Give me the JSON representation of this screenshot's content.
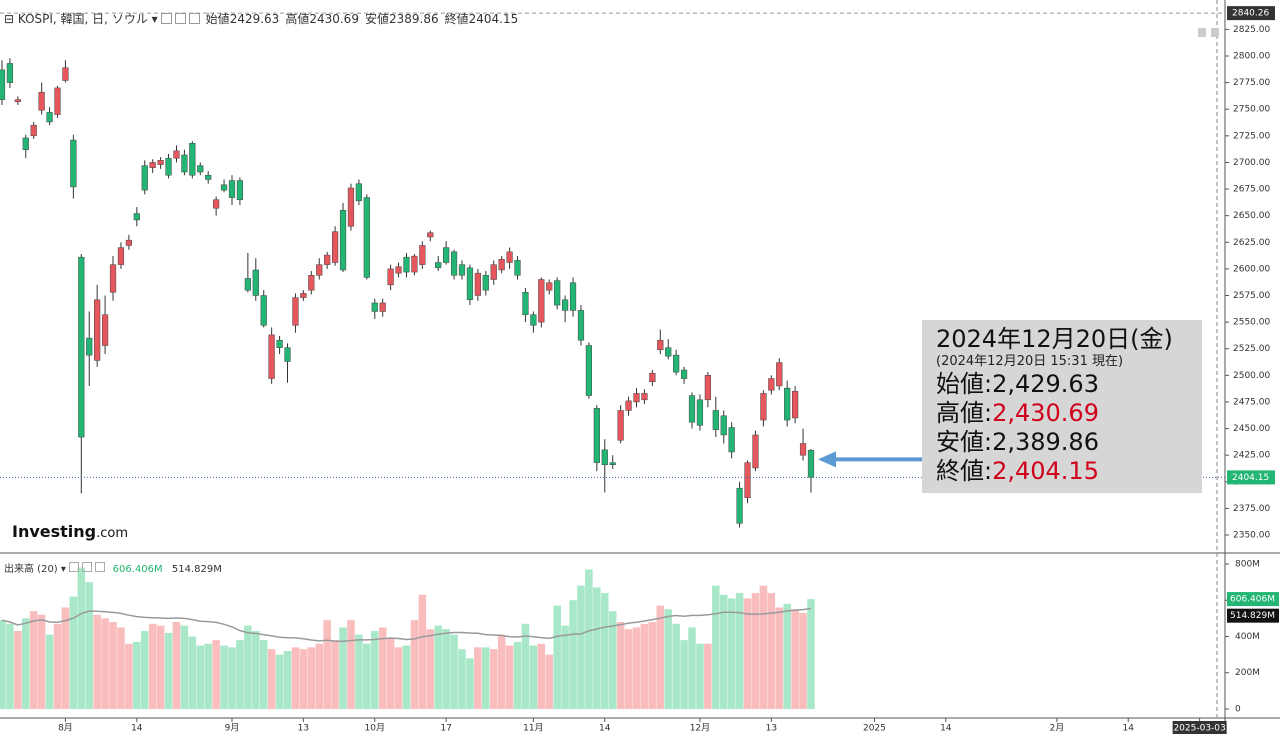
{
  "header": {
    "symbol": "KOSPI, 韓国, 日, ソウル",
    "ohlc": [
      {
        "name": "始値",
        "value": 2429.63
      },
      {
        "name": "高値",
        "value": 2430.69
      },
      {
        "name": "安値",
        "value": 2389.86
      },
      {
        "name": "終値",
        "value": 2404.15
      }
    ]
  },
  "logo": [
    "Investing",
    ".com"
  ],
  "callout": {
    "title": "2024年12月20日(金)",
    "subtitle": "(2024年12月20日 15:31 現在)",
    "rows": [
      {
        "name": "始値:",
        "value": {
          "value": 2429.63,
          "label": "2,429.63"
        },
        "color": "#111111"
      },
      {
        "name": "高値:",
        "value": {
          "value": 2430.69,
          "label": "2,430.69"
        },
        "color": "#d0021b"
      },
      {
        "name": "安値:",
        "value": {
          "value": 2389.86,
          "label": "2,389.86"
        },
        "color": "#111111"
      },
      {
        "name": "終値:",
        "value": {
          "value": 2404.15,
          "label": "2,404.15"
        },
        "color": "#d0021b"
      }
    ]
  },
  "chart_data": {
    "type": "candlestick",
    "up_color": "#e5575c",
    "down_color": "#22b573",
    "wick_color": "#333333",
    "xlim": [
      -0.25,
      154.2
    ],
    "xticks": [
      {
        "value": 8,
        "label": "8月"
      },
      {
        "value": 17,
        "label": "14"
      },
      {
        "value": 29,
        "label": "9月"
      },
      {
        "value": 38,
        "label": "13"
      },
      {
        "value": 47,
        "label": "10月"
      },
      {
        "value": 56,
        "label": "17"
      },
      {
        "value": 67,
        "label": "11月"
      },
      {
        "value": 76,
        "label": "14"
      },
      {
        "value": 88,
        "label": "12月"
      },
      {
        "value": 97,
        "label": "13"
      },
      {
        "value": 110,
        "label": "2025"
      },
      {
        "value": 119,
        "label": "14"
      },
      {
        "value": 133,
        "label": "2月"
      },
      {
        "value": 142,
        "label": "14"
      },
      {
        "value": 151,
        "label": "2025-03-03"
      }
    ],
    "ylim": [
      2333.1,
      2852.6
    ],
    "yticks": [
      {
        "value": 2350,
        "label": "2350.00"
      },
      {
        "value": 2375,
        "label": "2375.00"
      },
      {
        "value": 2400,
        "label": "2400.00"
      },
      {
        "value": 2425,
        "label": "2425.00"
      },
      {
        "value": 2450,
        "label": "2450.00"
      },
      {
        "value": 2475,
        "label": "2475.00"
      },
      {
        "value": 2500,
        "label": "2500.00"
      },
      {
        "value": 2525,
        "label": "2525.00"
      },
      {
        "value": 2550,
        "label": "2550.00"
      },
      {
        "value": 2575,
        "label": "2575.00"
      },
      {
        "value": 2600,
        "label": "2600.00"
      },
      {
        "value": 2625,
        "label": "2625.00"
      },
      {
        "value": 2650,
        "label": "2650.00"
      },
      {
        "value": 2675,
        "label": "2675.00"
      },
      {
        "value": 2700,
        "label": "2700.00"
      },
      {
        "value": 2725,
        "label": "2725.00"
      },
      {
        "value": 2750,
        "label": "2750.00"
      },
      {
        "value": 2775,
        "label": "2775.00"
      },
      {
        "value": 2800,
        "label": "2800.00"
      },
      {
        "value": 2825,
        "label": "2825.00"
      }
    ],
    "top_value": 2840.26,
    "open": [
      2787,
      2793,
      2757,
      2723,
      2725,
      2749,
      2747,
      2745,
      2777,
      2721,
      2611,
      2535,
      2514,
      2528,
      2578,
      2604,
      2622,
      2652,
      2697,
      2695,
      2698,
      2704,
      2704,
      2707,
      2718,
      2697,
      2688,
      2657,
      2679,
      2683,
      2683,
      2591,
      2599,
      2575,
      2497,
      2533,
      2526,
      2547,
      2573,
      2580,
      2594,
      2604,
      2606,
      2655,
      2640,
      2680,
      2667,
      2568,
      2560,
      2585,
      2596,
      2611,
      2597,
      2604,
      2630,
      2606,
      2620,
      2616,
      2604,
      2601,
      2575,
      2594,
      2590,
      2599,
      2606,
      2608,
      2578,
      2557,
      2550,
      2580,
      2589,
      2571,
      2587,
      2561,
      2528,
      2469,
      2430,
      2418,
      2439,
      2467,
      2475,
      2477,
      2494,
      2524,
      2526,
      2519,
      2505,
      2481,
      2477,
      2477,
      2467,
      2462,
      2451,
      2394,
      2385,
      2413,
      2458,
      2486,
      2490,
      2488,
      2460,
      2425,
      2429.63
    ],
    "high": [
      2796,
      2798,
      2762,
      2726,
      2738,
      2775,
      2752,
      2772,
      2796,
      2726,
      2614,
      2560,
      2585,
      2575,
      2612,
      2625,
      2632,
      2658,
      2702,
      2703,
      2705,
      2708,
      2716,
      2712,
      2720,
      2700,
      2692,
      2668,
      2684,
      2688,
      2686,
      2615,
      2610,
      2580,
      2545,
      2537,
      2530,
      2577,
      2580,
      2598,
      2610,
      2616,
      2640,
      2662,
      2680,
      2684,
      2670,
      2572,
      2572,
      2604,
      2606,
      2615,
      2614,
      2626,
      2636,
      2612,
      2626,
      2618,
      2608,
      2604,
      2600,
      2598,
      2608,
      2612,
      2620,
      2612,
      2582,
      2560,
      2592,
      2590,
      2592,
      2575,
      2592,
      2566,
      2531,
      2472,
      2440,
      2425,
      2472,
      2480,
      2488,
      2487,
      2505,
      2543,
      2534,
      2524,
      2508,
      2484,
      2482,
      2503,
      2480,
      2467,
      2456,
      2400,
      2420,
      2448,
      2486,
      2500,
      2516,
      2495,
      2490,
      2450,
      2430.69
    ],
    "low": [
      2754,
      2770,
      2754,
      2704,
      2722,
      2745,
      2735,
      2742,
      2775,
      2666,
      2389,
      2490,
      2508,
      2520,
      2570,
      2600,
      2618,
      2640,
      2670,
      2690,
      2694,
      2685,
      2700,
      2688,
      2685,
      2688,
      2680,
      2650,
      2672,
      2660,
      2660,
      2578,
      2570,
      2545,
      2492,
      2520,
      2493,
      2540,
      2570,
      2576,
      2590,
      2600,
      2603,
      2597,
      2636,
      2660,
      2590,
      2553,
      2555,
      2580,
      2592,
      2592,
      2594,
      2600,
      2626,
      2598,
      2604,
      2590,
      2590,
      2566,
      2570,
      2575,
      2585,
      2596,
      2600,
      2590,
      2550,
      2540,
      2545,
      2576,
      2562,
      2550,
      2555,
      2528,
      2478,
      2410,
      2390,
      2412,
      2436,
      2462,
      2470,
      2473,
      2490,
      2520,
      2515,
      2500,
      2492,
      2450,
      2448,
      2470,
      2442,
      2436,
      2422,
      2357,
      2380,
      2410,
      2452,
      2482,
      2486,
      2452,
      2455,
      2420,
      2389.86
    ],
    "close": [
      2759,
      2775,
      2759,
      2712,
      2735,
      2766,
      2738,
      2770,
      2789,
      2677,
      2442,
      2519,
      2571,
      2557,
      2604,
      2620,
      2627,
      2646,
      2674,
      2700,
      2702,
      2688,
      2711,
      2691,
      2688,
      2691,
      2684,
      2665,
      2674,
      2667,
      2665,
      2580,
      2575,
      2547,
      2538,
      2526,
      2513,
      2573,
      2577,
      2594,
      2604,
      2613,
      2635,
      2599,
      2676,
      2664,
      2592,
      2560,
      2568,
      2600,
      2602,
      2597,
      2612,
      2622,
      2634,
      2601,
      2606,
      2594,
      2594,
      2571,
      2596,
      2580,
      2604,
      2609,
      2616,
      2594,
      2557,
      2547,
      2590,
      2587,
      2566,
      2561,
      2561,
      2533,
      2481,
      2418,
      2416,
      2416,
      2467,
      2476,
      2483,
      2483,
      2502,
      2533,
      2518,
      2503,
      2497,
      2456,
      2453,
      2500,
      2449,
      2444,
      2428,
      2361,
      2418,
      2444,
      2483,
      2497,
      2512,
      2458,
      2485,
      2436,
      2404.15
    ],
    "volume": {
      "name": "出来高 (20)",
      "up_color": "#f9bdbd",
      "down_color": "#a8e8c9",
      "ma_color": "#9a9a9a",
      "ylim": [
        -49.7,
        844
      ],
      "yticks": [
        0,
        {
          "value": 200,
          "label": "200M"
        },
        {
          "value": 400,
          "label": "400M"
        },
        {
          "value": 600,
          "label": "600M"
        },
        {
          "value": 800,
          "label": "800M"
        }
      ],
      "values": [
        490,
        470,
        430,
        500,
        540,
        520,
        410,
        470,
        560,
        620,
        780,
        700,
        520,
        500,
        480,
        450,
        360,
        370,
        430,
        470,
        460,
        420,
        480,
        460,
        400,
        350,
        360,
        380,
        350,
        340,
        380,
        460,
        430,
        380,
        330,
        300,
        320,
        340,
        330,
        340,
        360,
        490,
        380,
        450,
        490,
        410,
        360,
        430,
        450,
        390,
        340,
        350,
        490,
        630,
        440,
        460,
        440,
        410,
        330,
        280,
        340,
        340,
        330,
        410,
        350,
        370,
        470,
        350,
        360,
        300,
        570,
        460,
        600,
        680,
        770,
        670,
        640,
        540,
        480,
        440,
        450,
        470,
        480,
        570,
        550,
        470,
        380,
        450,
        360,
        360,
        680,
        630,
        610,
        640,
        610,
        640,
        680,
        640,
        560,
        580,
        550,
        530,
        606.406
      ],
      "last_label": "606.406M",
      "ma_last": {
        "value": 514.829,
        "label": "514.829M"
      }
    }
  }
}
